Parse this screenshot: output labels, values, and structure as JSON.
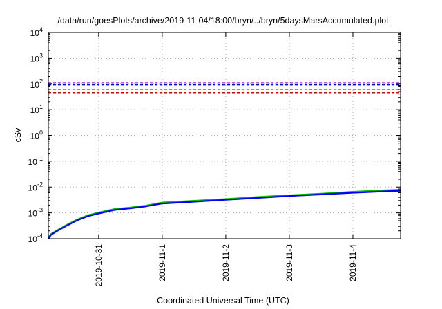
{
  "chart_data": {
    "type": "line",
    "title": "/data/run/goesPlots/archive/2019-11-04/18:00/bryn/../bryn/5daysMarsAccumulated.plot",
    "xlabel": "Coordinated Universal Time (UTC)",
    "ylabel": "cSv",
    "yscale": "log",
    "ylim": [
      0.0001,
      10000
    ],
    "y_tick_labels": [
      {
        "base": "10",
        "exp": "-4",
        "value": 0.0001
      },
      {
        "base": "10",
        "exp": "-3",
        "value": 0.001
      },
      {
        "base": "10",
        "exp": "-2",
        "value": 0.01
      },
      {
        "base": "10",
        "exp": "-1",
        "value": 0.1
      },
      {
        "base": "10",
        "exp": "0",
        "value": 1
      },
      {
        "base": "10",
        "exp": "1",
        "value": 10
      },
      {
        "base": "10",
        "exp": "2",
        "value": 100
      },
      {
        "base": "10",
        "exp": "3",
        "value": 1000
      },
      {
        "base": "10",
        "exp": "4",
        "value": 10000
      }
    ],
    "xlim": [
      "2019-10-30T05:00",
      "2019-11-04T18:00"
    ],
    "x_ticks": [
      "2019-10-31",
      "2019-11-1",
      "2019-11-2",
      "2019-11-3",
      "2019-11-4"
    ],
    "x_tick_dates": [
      "2019-10-31T00:00",
      "2019-11-01T00:00",
      "2019-11-02T00:00",
      "2019-11-03T00:00",
      "2019-11-04T00:00"
    ],
    "grid": true,
    "legend": "none",
    "reference_lines": [
      {
        "value": 110,
        "color": "#9400d3"
      },
      {
        "value": 95,
        "color": "#0000ff"
      },
      {
        "value": 60,
        "color": "#00c000"
      },
      {
        "value": 45,
        "color": "#e00000"
      }
    ],
    "series": [
      {
        "color": "#00c000",
        "x": [
          "2019-10-30T05:00",
          "2019-10-30T06:00",
          "2019-10-30T08:00",
          "2019-10-30T12:00",
          "2019-10-30T16:00",
          "2019-10-30T20:00",
          "2019-10-31T00:00",
          "2019-10-31T06:00",
          "2019-10-31T12:00",
          "2019-10-31T18:00",
          "2019-11-01T00:00",
          "2019-11-01T12:00",
          "2019-11-02T00:00",
          "2019-11-02T12:00",
          "2019-11-03T00:00",
          "2019-11-03T12:00",
          "2019-11-04T00:00",
          "2019-11-04T12:00",
          "2019-11-04T18:00"
        ],
        "y": [
          0.00011,
          0.00015,
          0.0002,
          0.00034,
          0.00055,
          0.0008,
          0.00102,
          0.0014,
          0.0016,
          0.0019,
          0.0025,
          0.0029,
          0.0034,
          0.0041,
          0.0048,
          0.0055,
          0.0065,
          0.0074,
          0.0078
        ]
      },
      {
        "color": "#0000ff",
        "x": [
          "2019-10-30T05:00",
          "2019-10-30T06:00",
          "2019-10-30T08:00",
          "2019-10-30T12:00",
          "2019-10-30T16:00",
          "2019-10-30T20:00",
          "2019-10-31T00:00",
          "2019-10-31T06:00",
          "2019-10-31T12:00",
          "2019-10-31T18:00",
          "2019-11-01T00:00",
          "2019-11-01T12:00",
          "2019-11-02T00:00",
          "2019-11-02T12:00",
          "2019-11-03T00:00",
          "2019-11-03T12:00",
          "2019-11-04T00:00",
          "2019-11-04T12:00",
          "2019-11-04T18:00"
        ],
        "y": [
          0.0001,
          0.00014,
          0.00019,
          0.00032,
          0.00052,
          0.00075,
          0.00095,
          0.0013,
          0.0015,
          0.0018,
          0.0023,
          0.0027,
          0.0032,
          0.0038,
          0.0045,
          0.0052,
          0.006,
          0.0068,
          0.0072
        ]
      }
    ]
  }
}
